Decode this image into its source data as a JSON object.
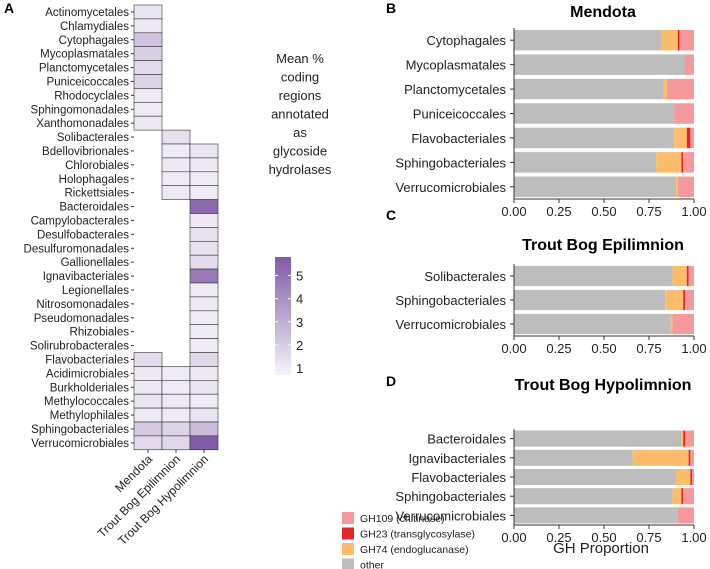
{
  "panel_letters": {
    "a": "A",
    "b": "B",
    "c": "C",
    "d": "D"
  },
  "colors": {
    "heat_low": "#f6f4fa",
    "heat_high": "#7f5aa6",
    "heat_border": "#333333",
    "GH109": "#f59a9c",
    "GH23": "#e3262a",
    "GH74": "#fbbd6c",
    "other": "#bdbdbd"
  },
  "chart_data": [
    {
      "type": "heatmap",
      "panel": "A",
      "columns": [
        "Mendota",
        "Trout Bog Epilimnion",
        "Trout Bog Hypolimnion"
      ],
      "rows": [
        "Actinomycetales",
        "Chlamydiales",
        "Cytophagales",
        "Mycoplasmatales",
        "Planctomycetales",
        "Puniceicoccales",
        "Rhodocyclales",
        "Sphingomonadales",
        "Xanthomonadales",
        "Solibacterales",
        "Bdellovibrionales",
        "Chlorobiales",
        "Holophagales",
        "Rickettsiales",
        "Bacteroidales",
        "Campylobacterales",
        "Desulfobacterales",
        "Desulfuromonadales",
        "Gallionellales",
        "Ignavibacteriales",
        "Legionellales",
        "Nitrosomonadales",
        "Pseudomonadales",
        "Rhizobiales",
        "Solirubrobacterales",
        "Flavobacteriales",
        "Acidimicrobiales",
        "Burkholderiales",
        "Methylococcales",
        "Methylophilales",
        "Sphingobacteriales",
        "Verrucomicrobiales"
      ],
      "values": [
        [
          1.2,
          null,
          null
        ],
        [
          1.1,
          null,
          null
        ],
        [
          2.3,
          null,
          null
        ],
        [
          1.9,
          null,
          null
        ],
        [
          1.6,
          null,
          null
        ],
        [
          1.8,
          null,
          null
        ],
        [
          1.1,
          null,
          null
        ],
        [
          1.0,
          null,
          null
        ],
        [
          1.1,
          null,
          null
        ],
        [
          null,
          1.4,
          null
        ],
        [
          null,
          1.0,
          1.2
        ],
        [
          null,
          1.1,
          1.1
        ],
        [
          null,
          1.0,
          1.0
        ],
        [
          null,
          1.1,
          1.0
        ],
        [
          null,
          null,
          5.3
        ],
        [
          null,
          null,
          1.1
        ],
        [
          null,
          null,
          1.4
        ],
        [
          null,
          null,
          1.3
        ],
        [
          null,
          null,
          1.5
        ],
        [
          null,
          null,
          4.7
        ],
        [
          null,
          null,
          1.0
        ],
        [
          null,
          null,
          1.1
        ],
        [
          null,
          null,
          1.0
        ],
        [
          null,
          null,
          1.0
        ],
        [
          null,
          null,
          1.0
        ],
        [
          1.5,
          null,
          1.6
        ],
        [
          1.1,
          1.0,
          1.1
        ],
        [
          1.1,
          1.0,
          1.2
        ],
        [
          1.2,
          1.1,
          1.0
        ],
        [
          1.0,
          1.0,
          1.2
        ],
        [
          2.2,
          1.8,
          2.6
        ],
        [
          1.6,
          1.7,
          5.7
        ]
      ],
      "legend_title": "Mean % coding regions annotated as glycoside hydrolases",
      "legend_ticks": [
        5,
        4,
        3,
        2,
        1
      ],
      "value_range": [
        0.7,
        5.8
      ]
    },
    {
      "type": "bar",
      "orientation": "horizontal",
      "stacked": true,
      "panel": "B",
      "title": "Mendota",
      "categories": [
        "Cytophagales",
        "Mycoplasmatales",
        "Planctomycetales",
        "Puniceicoccales",
        "Flavobacteriales",
        "Sphingobacteriales",
        "Verrucomicrobiales"
      ],
      "series": [
        {
          "name": "other",
          "values": [
            0.82,
            0.95,
            0.83,
            0.89,
            0.89,
            0.79,
            0.9
          ]
        },
        {
          "name": "GH74 (endoglucanase)",
          "values": [
            0.09,
            0.0,
            0.02,
            0.0,
            0.07,
            0.14,
            0.01
          ]
        },
        {
          "name": "GH23 (transglycosylase)",
          "values": [
            0.01,
            0.0,
            0.0,
            0.0,
            0.02,
            0.01,
            0.0
          ]
        },
        {
          "name": "GH109 (chitinase)",
          "values": [
            0.08,
            0.05,
            0.15,
            0.11,
            0.02,
            0.06,
            0.09
          ]
        }
      ],
      "xlim": [
        0,
        1
      ],
      "xticks": [
        "0.00",
        "0.25",
        "0.50",
        "0.75",
        "1.00"
      ]
    },
    {
      "type": "bar",
      "orientation": "horizontal",
      "stacked": true,
      "panel": "C",
      "title": "Trout Bog Epilimnion",
      "categories": [
        "Solibacterales",
        "Sphingobacteriales",
        "Verrucomicrobiales"
      ],
      "series": [
        {
          "name": "other",
          "values": [
            0.88,
            0.84,
            0.87
          ]
        },
        {
          "name": "GH74 (endoglucanase)",
          "values": [
            0.08,
            0.1,
            0.01
          ]
        },
        {
          "name": "GH23 (transglycosylase)",
          "values": [
            0.01,
            0.01,
            0.0
          ]
        },
        {
          "name": "GH109 (chitinase)",
          "values": [
            0.03,
            0.05,
            0.12
          ]
        }
      ],
      "xlim": [
        0,
        1
      ],
      "xticks": [
        "0.00",
        "0.25",
        "0.50",
        "0.75",
        "1.00"
      ]
    },
    {
      "type": "bar",
      "orientation": "horizontal",
      "stacked": true,
      "panel": "D",
      "title": "Trout Bog Hypolimnion",
      "categories": [
        "Bacteroidales",
        "Ignavibacteriales",
        "Flavobacteriales",
        "Sphingobacteriales",
        "Verrucomicrobiales"
      ],
      "series": [
        {
          "name": "other",
          "values": [
            0.93,
            0.66,
            0.9,
            0.88,
            0.91
          ]
        },
        {
          "name": "GH74 (endoglucanase)",
          "values": [
            0.01,
            0.31,
            0.08,
            0.05,
            0.0
          ]
        },
        {
          "name": "GH23 (transglycosylase)",
          "values": [
            0.01,
            0.01,
            0.01,
            0.01,
            0.0
          ]
        },
        {
          "name": "GH109 (chitinase)",
          "values": [
            0.05,
            0.02,
            0.01,
            0.06,
            0.09
          ]
        }
      ],
      "xlim": [
        0,
        1
      ],
      "xticks": [
        "0.00",
        "0.25",
        "0.50",
        "0.75",
        "1.00"
      ],
      "xlabel": "GH Proportion"
    }
  ],
  "legend": {
    "entries": [
      {
        "label": "GH109 (chitinase)",
        "color_key": "GH109"
      },
      {
        "label": "GH23 (transglycosylase)",
        "color_key": "GH23"
      },
      {
        "label": "GH74 (endoglucanase)",
        "color_key": "GH74"
      },
      {
        "label": "other",
        "color_key": "other"
      }
    ]
  }
}
